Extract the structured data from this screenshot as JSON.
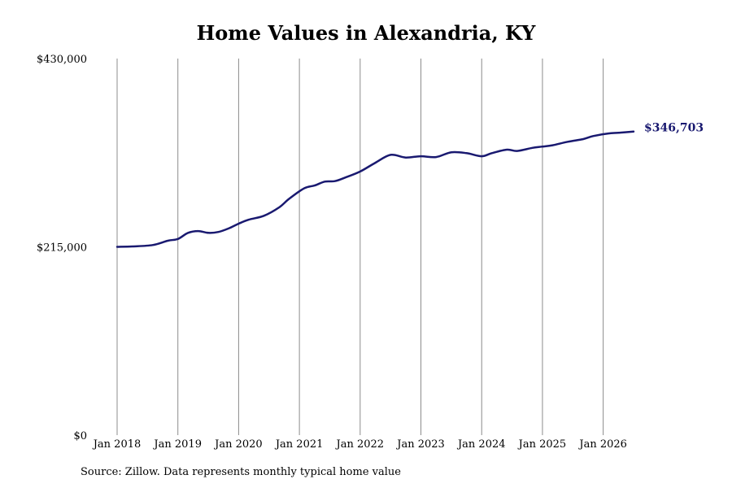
{
  "title": "Home Values in Alexandria, KY",
  "source": "Source: Zillow. Data represents monthly typical home value",
  "colors": {
    "line": "#191970",
    "grid": "#8c8c8c",
    "end_label": "#191970"
  },
  "chart_data": {
    "type": "line",
    "title": "Home Values in Alexandria, KY",
    "xlabel": "",
    "ylabel": "",
    "ylim": [
      0,
      430000
    ],
    "yticks": [
      {
        "value": 0,
        "label": "$0"
      },
      {
        "value": 215000,
        "label": "$215,000"
      },
      {
        "value": 430000,
        "label": "$430,000"
      }
    ],
    "xlim": [
      "2018-01",
      "2026-07"
    ],
    "xticks": [
      {
        "value": "2018-01",
        "label": "Jan 2018"
      },
      {
        "value": "2019-01",
        "label": "Jan 2019"
      },
      {
        "value": "2020-01",
        "label": "Jan 2020"
      },
      {
        "value": "2021-01",
        "label": "Jan 2021"
      },
      {
        "value": "2022-01",
        "label": "Jan 2022"
      },
      {
        "value": "2023-01",
        "label": "Jan 2023"
      },
      {
        "value": "2024-01",
        "label": "Jan 2024"
      },
      {
        "value": "2025-01",
        "label": "Jan 2025"
      },
      {
        "value": "2026-01",
        "label": "Jan 2026"
      }
    ],
    "grid": "vertical",
    "end_label": "$346,703",
    "series": [
      {
        "x": [
          "2018-01",
          "2018-04",
          "2018-08",
          "2018-11",
          "2019-01",
          "2019-03",
          "2019-05",
          "2019-07",
          "2019-09",
          "2019-11",
          "2020-01",
          "2020-03",
          "2020-06",
          "2020-09",
          "2020-11",
          "2021-02",
          "2021-04",
          "2021-06",
          "2021-08",
          "2021-10",
          "2022-01",
          "2022-04",
          "2022-07",
          "2022-10",
          "2023-01",
          "2023-04",
          "2023-07",
          "2023-10",
          "2024-01",
          "2024-03",
          "2024-06",
          "2024-08",
          "2024-11",
          "2025-01",
          "2025-03",
          "2025-06",
          "2025-09",
          "2025-11",
          "2026-02",
          "2026-04",
          "2026-07"
        ],
        "values": [
          215000,
          215500,
          217000,
          222000,
          224000,
          231000,
          233000,
          231000,
          232000,
          236000,
          241500,
          246000,
          250500,
          260000,
          270000,
          282000,
          285000,
          289500,
          290000,
          294000,
          301000,
          311000,
          320000,
          317000,
          318500,
          317500,
          323000,
          322000,
          318500,
          322000,
          326000,
          324500,
          328000,
          329500,
          331000,
          335000,
          338000,
          341500,
          344500,
          345200,
          346703
        ]
      }
    ]
  }
}
